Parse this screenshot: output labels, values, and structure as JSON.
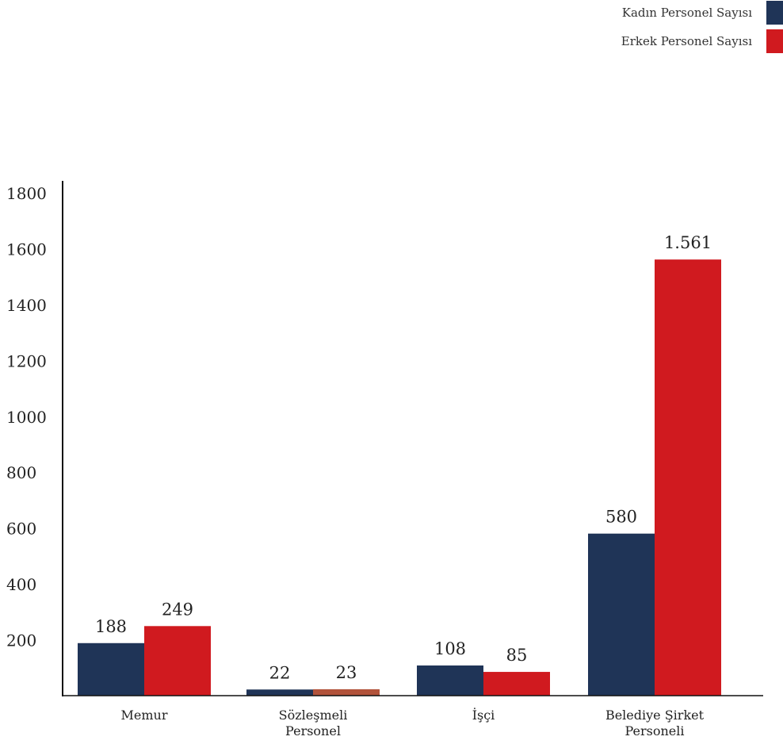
{
  "colors": {
    "kadin": "#1f3457",
    "erkek": "#d01a1f",
    "sozlesmeli_erkek": "#b2533b",
    "axis": "#111111"
  },
  "legend": [
    {
      "label": "Kadın Personel Sayısı",
      "color": "#1f3457"
    },
    {
      "label": "Erkek Personel Sayısı",
      "color": "#d01a1f"
    }
  ],
  "chart_data": {
    "type": "bar",
    "categories": [
      [
        "Memur"
      ],
      [
        "Sözleşmeli",
        "Personel"
      ],
      [
        "İşçi"
      ],
      [
        "Belediye Şirket",
        "Personeli"
      ]
    ],
    "series": [
      {
        "name": "Kadın Personel Sayısı",
        "values": [
          188,
          22,
          108,
          580
        ],
        "labels": [
          "188",
          "22",
          "108",
          "580"
        ],
        "color": "#1f3457"
      },
      {
        "name": "Erkek Personel Sayısı",
        "values": [
          249,
          23,
          85,
          1561
        ],
        "labels": [
          "249",
          "23",
          "85",
          "1.561"
        ],
        "color": "#d01a1f",
        "point_colors": [
          "#d01a1f",
          "#b2533b",
          "#d01a1f",
          "#d01a1f"
        ]
      }
    ],
    "yticks": [
      200,
      400,
      600,
      800,
      1000,
      1200,
      1400,
      1600,
      1800
    ],
    "ylim": [
      0,
      1800
    ],
    "grid": false,
    "legend_position": "top-right",
    "title": "",
    "xlabel": "",
    "ylabel": ""
  }
}
